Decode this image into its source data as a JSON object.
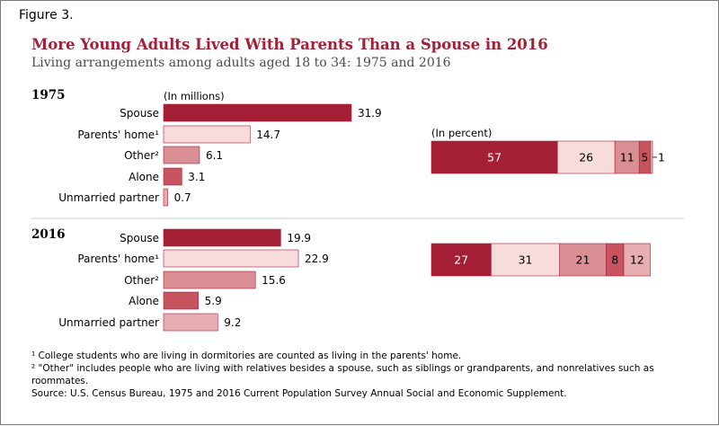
{
  "figure_label": "Figure 3.",
  "title": "More Young Adults Lived With Parents Than a Spouse in 2016",
  "subtitle": "Living arrangements among adults aged 18 to 34: 1975 and 2016",
  "footnotes": [
    "¹ College students who are living in dormitories are counted as living in the parents' home.",
    "² \"Other\" includes people who are living with relatives besides a spouse, such as siblings or grandparents, and nonrelatives such as roommates.",
    "Source: U.S. Census Bureau, 1975 and 2016 Current Population Survey Annual Social and Economic Supplement."
  ],
  "colors": {
    "spouse": "#a41f35",
    "parents_home": "#f8dcdc",
    "other": "#d98f93",
    "alone": "#c8545f",
    "unmarried_partner": "#e7aeb1",
    "outline": "#a41f35",
    "divider": "#cccccc"
  },
  "chart_data": [
    {
      "type": "bar",
      "orientation": "horizontal",
      "year": "1975",
      "unit_label": "(In millions)",
      "categories": [
        "Spouse",
        "Parents' home¹",
        "Other²",
        "Alone",
        "Unmarried partner"
      ],
      "values": [
        31.9,
        14.7,
        6.1,
        3.1,
        0.7
      ]
    },
    {
      "type": "bar",
      "orientation": "horizontal-stacked",
      "year": "1975",
      "unit_label": "(In percent)",
      "categories": [
        "Spouse",
        "Parents' home",
        "Other",
        "Alone",
        "Unmarried partner"
      ],
      "values": [
        57,
        26,
        11,
        5,
        1
      ]
    },
    {
      "type": "bar",
      "orientation": "horizontal",
      "year": "2016",
      "unit_label": "",
      "categories": [
        "Spouse",
        "Parents' home¹",
        "Other²",
        "Alone",
        "Unmarried partner"
      ],
      "values": [
        19.9,
        22.9,
        15.6,
        5.9,
        9.2
      ]
    },
    {
      "type": "bar",
      "orientation": "horizontal-stacked",
      "year": "2016",
      "unit_label": "",
      "categories": [
        "Spouse",
        "Parents' home",
        "Other",
        "Alone",
        "Unmarried partner"
      ],
      "values": [
        27,
        31,
        21,
        8,
        12
      ]
    }
  ]
}
